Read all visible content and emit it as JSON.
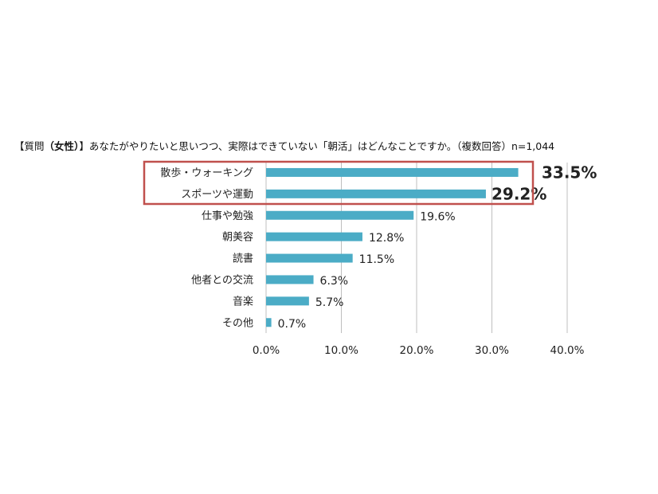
{
  "title": {
    "bracket_open": "【質問",
    "paren_open": "（",
    "gender": "女性",
    "paren_close": "）",
    "bracket_close": "】",
    "question": "あなたがやりたいと思いつつ、実際はできていない「朝活」はどんなことですか。（複数回答）n=1,044"
  },
  "colors": {
    "bar": "#4bacc6",
    "highlight_value": "#3a8aa3",
    "highlight_box": "#c0504d",
    "grid": "#bfbfbf"
  },
  "chart_data": {
    "type": "bar",
    "orientation": "horizontal",
    "categories": [
      "散歩・ウォーキング",
      "スポーツや運動",
      "仕事や勉強",
      "朝美容",
      "読書",
      "他者との交流",
      "音楽",
      "その他"
    ],
    "values": [
      33.5,
      29.2,
      19.6,
      12.8,
      11.5,
      6.3,
      5.7,
      0.7
    ],
    "value_labels": [
      "33.5%",
      "29.2%",
      "19.6%",
      "12.8%",
      "11.5%",
      "6.3%",
      "5.7%",
      "0.7%"
    ],
    "highlighted": [
      true,
      true,
      false,
      false,
      false,
      false,
      false,
      false
    ],
    "xlim": [
      0,
      40
    ],
    "xticks": [
      0,
      10,
      20,
      30,
      40
    ],
    "xtick_labels": [
      "0.0%",
      "10.0%",
      "20.0%",
      "30.0%",
      "40.0%"
    ],
    "grid": "vertical"
  }
}
